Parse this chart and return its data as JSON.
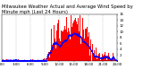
{
  "title": "Milwaukee Weather Actual and Average Wind Speed by Minute mph (Last 24 Hours)",
  "background_color": "#ffffff",
  "bar_color": "#ff0000",
  "avg_color": "#0000ff",
  "grid_color": "#999999",
  "ylim": [
    0,
    16
  ],
  "yticks": [
    2,
    4,
    6,
    8,
    10,
    12,
    14,
    16
  ],
  "title_fontsize": 3.8,
  "tick_fontsize": 2.8,
  "n_points": 1440,
  "dashed_x": [
    0,
    180,
    360,
    540,
    720,
    900,
    1080,
    1260,
    1440
  ],
  "xtick_labels": [
    "0:00",
    "3:00",
    "6:00",
    "9:00",
    "12:00",
    "15:00",
    "18:00",
    "21:00",
    "24:00"
  ]
}
